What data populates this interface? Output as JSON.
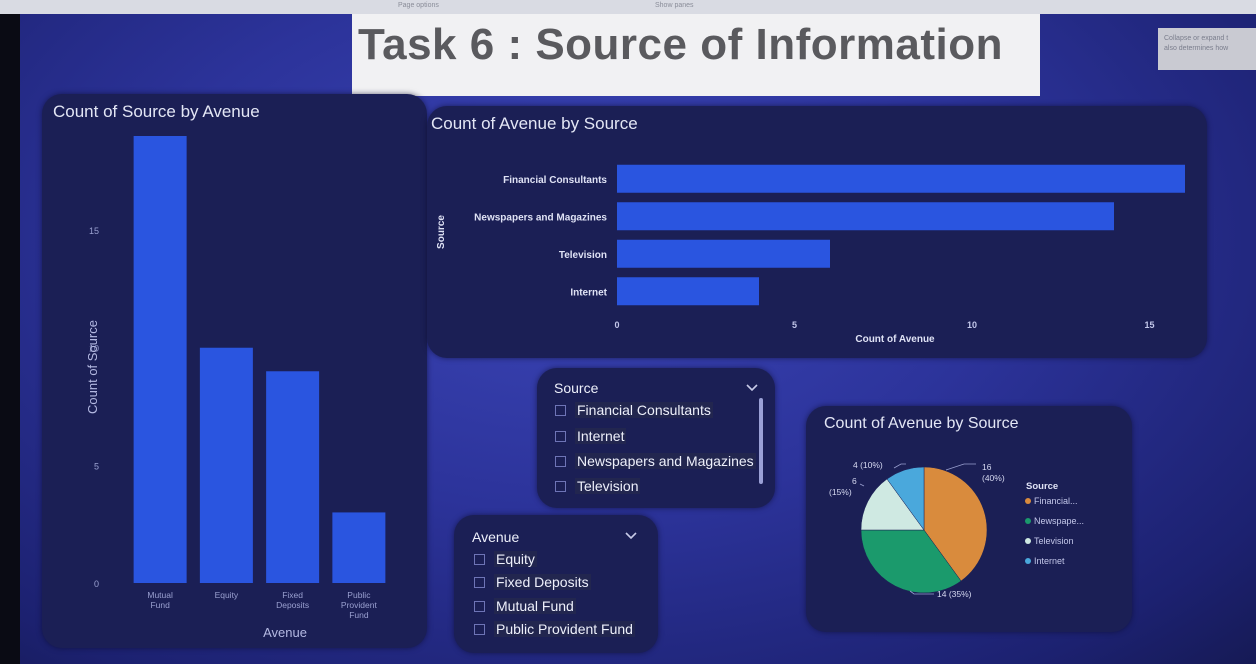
{
  "topbar": {
    "left_label": "Page options",
    "center_label": "Show panes"
  },
  "page_title": "Task 6 : Source of Information",
  "tooltip": {
    "line1": "Collapse or expand t",
    "line2": "also determines how"
  },
  "colors": {
    "bar": "#2a55e0",
    "panel": "#1b1f55",
    "pie_financial": "#d98b3d",
    "pie_newspapers": "#1b9a6c",
    "pie_television": "#cfe9e2",
    "pie_internet": "#4aa8dc"
  },
  "chart_data": [
    {
      "type": "bar",
      "title": "Count of Source by Avenue",
      "xlabel": "Avenue",
      "ylabel": "Count of Source",
      "categories": [
        "Mutual Fund",
        "Equity",
        "Fixed Deposits",
        "Public Provident Fund"
      ],
      "values": [
        19,
        10,
        9,
        3
      ],
      "ylim": [
        0,
        19
      ],
      "yticks": [
        0,
        5,
        10,
        15
      ],
      "ytick_labels": [
        "0",
        "5",
        "10",
        "15"
      ],
      "grid": false
    },
    {
      "type": "bar",
      "orientation": "horizontal",
      "title": "Count of Avenue by Source",
      "xlabel": "Count of Avenue",
      "ylabel": "Source",
      "categories": [
        "Financial Consultants",
        "Newspapers and Magazines",
        "Television",
        "Internet"
      ],
      "values": [
        16,
        14,
        6,
        4
      ],
      "xlim": [
        0,
        16
      ],
      "xticks": [
        0,
        5,
        10,
        15
      ],
      "xtick_labels": [
        "0",
        "5",
        "10",
        "15"
      ],
      "grid": false
    },
    {
      "type": "pie",
      "title": "Count of Avenue by Source",
      "legend_title": "Source",
      "legend_position": "right",
      "categories": [
        "Financial...",
        "Newspape...",
        "Television",
        "Internet"
      ],
      "values": [
        16,
        14,
        6,
        4
      ],
      "data_labels": [
        {
          "value": "16",
          "pct": "(40%)"
        },
        {
          "value": "14",
          "pct": "(35%)"
        },
        {
          "value": "6",
          "pct": "(15%)"
        },
        {
          "value": "4",
          "pct": "(10%)"
        }
      ]
    }
  ],
  "slicers": {
    "source": {
      "header": "Source",
      "items": [
        "Financial Consultants",
        "Internet",
        "Newspapers and Magazines",
        "Television"
      ]
    },
    "avenue": {
      "header": "Avenue",
      "items": [
        "Equity",
        "Fixed Deposits",
        "Mutual Fund",
        "Public Provident Fund"
      ]
    }
  }
}
